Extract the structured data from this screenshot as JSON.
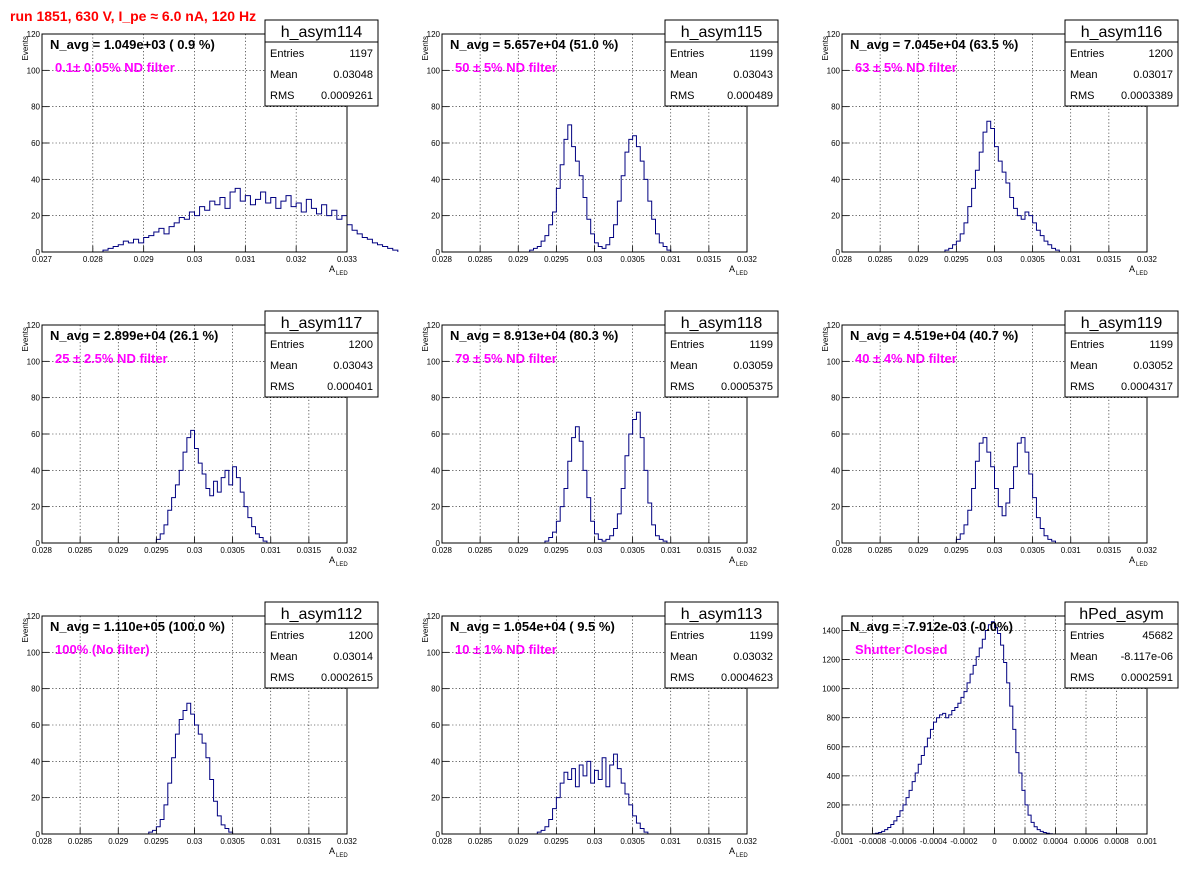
{
  "page": {
    "title": "run 1851,   630 V, I_pe ≈ 6.0 nA, 120 Hz",
    "colors": {
      "title": "#ff0000",
      "annotation": "#ff00ff",
      "histogram": "#000080",
      "frame": "#000000",
      "grid": "#000000"
    }
  },
  "chart_data": [
    {
      "type": "histogram",
      "name": "h_asym114",
      "navg": "N_avg = 1.049e+03 ( 0.9 %)",
      "note": "0.1± 0.05% ND filter",
      "stats": {
        "entries_label": "Entries",
        "entries": "1197",
        "mean_label": "Mean",
        "mean": "0.03048",
        "rms_label": "RMS",
        "rms": "0.0009261"
      },
      "ylabel": "Events",
      "xlabel": "A",
      "xlabel_sub": "LED",
      "xlim": [
        0.027,
        0.033
      ],
      "ylim": [
        0,
        120
      ],
      "xticks": [
        0.027,
        0.028,
        0.029,
        0.03,
        0.031,
        0.032,
        0.033
      ],
      "xticklabels": [
        "0.027",
        "0.028",
        "0.029",
        "0.03",
        "0.031",
        "0.032",
        "0.033"
      ],
      "yticks": [
        0,
        20,
        40,
        60,
        80,
        100,
        120
      ],
      "grid": true,
      "bins": {
        "start": 0.0281,
        "width": 0.0001,
        "values": [
          0,
          1,
          2,
          3,
          4,
          6,
          5,
          7,
          5,
          8,
          9,
          11,
          13,
          10,
          14,
          16,
          19,
          18,
          22,
          20,
          25,
          23,
          28,
          26,
          30,
          24,
          33,
          35,
          28,
          31,
          26,
          29,
          33,
          27,
          30,
          24,
          28,
          31,
          25,
          27,
          22,
          29,
          24,
          21,
          26,
          20,
          23,
          18,
          20,
          15,
          12,
          10,
          8,
          7,
          5,
          4,
          3,
          2,
          1
        ]
      },
      "grid_layout_row": 0,
      "grid_layout_col": 0
    },
    {
      "type": "histogram",
      "name": "h_asym115",
      "navg": "N_avg = 5.657e+04 (51.0 %)",
      "note": "50 ± 5% ND filter",
      "stats": {
        "entries_label": "Entries",
        "entries": "1199",
        "mean_label": "Mean",
        "mean": "0.03043",
        "rms_label": "RMS",
        "rms": "0.000489"
      },
      "ylabel": "Events",
      "xlabel": "A",
      "xlabel_sub": "LED",
      "xlim": [
        0.028,
        0.032
      ],
      "ylim": [
        0,
        120
      ],
      "xticks": [
        0.028,
        0.0285,
        0.029,
        0.0295,
        0.03,
        0.0305,
        0.031,
        0.0315,
        0.032
      ],
      "xticklabels": [
        "0.028",
        "0.0285",
        "0.029",
        "0.0295",
        "0.03",
        "0.0305",
        "0.031",
        "0.0315",
        "0.032"
      ],
      "yticks": [
        0,
        20,
        40,
        60,
        80,
        100,
        120
      ],
      "grid": true,
      "bins": {
        "start": 0.02915,
        "width": 5e-05,
        "values": [
          1,
          2,
          3,
          6,
          9,
          15,
          22,
          35,
          48,
          62,
          70,
          58,
          50,
          42,
          30,
          18,
          10,
          5,
          3,
          2,
          4,
          8,
          15,
          28,
          42,
          55,
          62,
          64,
          58,
          50,
          40,
          28,
          18,
          10,
          5,
          3,
          1
        ]
      },
      "grid_layout_row": 0,
      "grid_layout_col": 1
    },
    {
      "type": "histogram",
      "name": "h_asym116",
      "navg": "N_avg = 7.045e+04 (63.5 %)",
      "note": "63 ± 5% ND filter",
      "stats": {
        "entries_label": "Entries",
        "entries": "1200",
        "mean_label": "Mean",
        "mean": "0.03017",
        "rms_label": "RMS",
        "rms": "0.0003389"
      },
      "ylabel": "Events",
      "xlabel": "A",
      "xlabel_sub": "LED",
      "xlim": [
        0.028,
        0.032
      ],
      "ylim": [
        0,
        120
      ],
      "xticks": [
        0.028,
        0.0285,
        0.029,
        0.0295,
        0.03,
        0.0305,
        0.031,
        0.0315,
        0.032
      ],
      "xticklabels": [
        "0.028",
        "0.0285",
        "0.029",
        "0.0295",
        "0.03",
        "0.0305",
        "0.031",
        "0.0315",
        "0.032"
      ],
      "yticks": [
        0,
        20,
        40,
        60,
        80,
        100,
        120
      ],
      "grid": true,
      "bins": {
        "start": 0.02935,
        "width": 5e-05,
        "values": [
          1,
          2,
          4,
          6,
          10,
          16,
          25,
          35,
          45,
          55,
          66,
          72,
          68,
          58,
          50,
          44,
          38,
          30,
          24,
          20,
          18,
          22,
          20,
          16,
          12,
          9,
          6,
          4,
          2,
          1
        ]
      },
      "grid_layout_row": 0,
      "grid_layout_col": 2
    },
    {
      "type": "histogram",
      "name": "h_asym117",
      "navg": "N_avg = 2.899e+04 (26.1 %)",
      "note": "25 ± 2.5% ND filter",
      "stats": {
        "entries_label": "Entries",
        "entries": "1200",
        "mean_label": "Mean",
        "mean": "0.03043",
        "rms_label": "RMS",
        "rms": "0.000401"
      },
      "ylabel": "Events",
      "xlabel": "A",
      "xlabel_sub": "LED",
      "xlim": [
        0.028,
        0.032
      ],
      "ylim": [
        0,
        120
      ],
      "xticks": [
        0.028,
        0.0285,
        0.029,
        0.0295,
        0.03,
        0.0305,
        0.031,
        0.0315,
        0.032
      ],
      "xticklabels": [
        "0.028",
        "0.0285",
        "0.029",
        "0.0295",
        "0.03",
        "0.0305",
        "0.031",
        "0.0315",
        "0.032"
      ],
      "yticks": [
        0,
        20,
        40,
        60,
        80,
        100,
        120
      ],
      "grid": true,
      "bins": {
        "start": 0.0295,
        "width": 5e-05,
        "values": [
          2,
          5,
          10,
          18,
          25,
          32,
          40,
          50,
          58,
          62,
          52,
          44,
          38,
          30,
          26,
          34,
          28,
          36,
          40,
          32,
          42,
          36,
          28,
          20,
          14,
          9,
          5,
          3,
          1
        ]
      },
      "grid_layout_row": 1,
      "grid_layout_col": 0
    },
    {
      "type": "histogram",
      "name": "h_asym118",
      "navg": "N_avg = 8.913e+04 (80.3 %)",
      "note": "79 ± 5% ND filter",
      "stats": {
        "entries_label": "Entries",
        "entries": "1199",
        "mean_label": "Mean",
        "mean": "0.03059",
        "rms_label": "RMS",
        "rms": "0.0005375"
      },
      "ylabel": "Events",
      "xlabel": "A",
      "xlabel_sub": "LED",
      "xlim": [
        0.028,
        0.032
      ],
      "ylim": [
        0,
        120
      ],
      "xticks": [
        0.028,
        0.0285,
        0.029,
        0.0295,
        0.03,
        0.0305,
        0.031,
        0.0315,
        0.032
      ],
      "xticklabels": [
        "0.028",
        "0.0285",
        "0.029",
        "0.0295",
        "0.03",
        "0.0305",
        "0.031",
        "0.0315",
        "0.032"
      ],
      "yticks": [
        0,
        20,
        40,
        60,
        80,
        100,
        120
      ],
      "grid": true,
      "bins": {
        "start": 0.02935,
        "width": 5e-05,
        "values": [
          1,
          3,
          6,
          12,
          20,
          30,
          45,
          58,
          64,
          56,
          40,
          25,
          12,
          5,
          2,
          1,
          2,
          4,
          8,
          16,
          30,
          48,
          60,
          68,
          72,
          58,
          40,
          22,
          10,
          4,
          2,
          1
        ]
      },
      "grid_layout_row": 1,
      "grid_layout_col": 1
    },
    {
      "type": "histogram",
      "name": "h_asym119",
      "navg": "N_avg = 4.519e+04 (40.7 %)",
      "note": "40 ± 4% ND filter",
      "stats": {
        "entries_label": "Entries",
        "entries": "1199",
        "mean_label": "Mean",
        "mean": "0.03052",
        "rms_label": "RMS",
        "rms": "0.0004317"
      },
      "ylabel": "Events",
      "xlabel": "A",
      "xlabel_sub": "LED",
      "xlim": [
        0.028,
        0.032
      ],
      "ylim": [
        0,
        120
      ],
      "xticks": [
        0.028,
        0.0285,
        0.029,
        0.0295,
        0.03,
        0.0305,
        0.031,
        0.0315,
        0.032
      ],
      "xticklabels": [
        "0.028",
        "0.0285",
        "0.029",
        "0.0295",
        "0.03",
        "0.0305",
        "0.031",
        "0.0315",
        "0.032"
      ],
      "yticks": [
        0,
        20,
        40,
        60,
        80,
        100,
        120
      ],
      "grid": true,
      "bins": {
        "start": 0.0295,
        "width": 5e-05,
        "values": [
          2,
          5,
          10,
          18,
          30,
          45,
          55,
          58,
          50,
          42,
          30,
          20,
          15,
          22,
          30,
          42,
          55,
          58,
          50,
          38,
          25,
          14,
          8,
          4,
          2,
          1
        ]
      },
      "grid_layout_row": 1,
      "grid_layout_col": 2
    },
    {
      "type": "histogram",
      "name": "h_asym112",
      "navg": "N_avg = 1.110e+05 (100.0 %)",
      "note": "100% (No filter)",
      "stats": {
        "entries_label": "Entries",
        "entries": "1200",
        "mean_label": "Mean",
        "mean": "0.03014",
        "rms_label": "RMS",
        "rms": "0.0002615"
      },
      "ylabel": "Events",
      "xlabel": "A",
      "xlabel_sub": "LED",
      "xlim": [
        0.028,
        0.032
      ],
      "ylim": [
        0,
        120
      ],
      "xticks": [
        0.028,
        0.0285,
        0.029,
        0.0295,
        0.03,
        0.0305,
        0.031,
        0.0315,
        0.032
      ],
      "xticklabels": [
        "0.028",
        "0.0285",
        "0.029",
        "0.0295",
        "0.03",
        "0.0305",
        "0.031",
        "0.0315",
        "0.032"
      ],
      "yticks": [
        0,
        20,
        40,
        60,
        80,
        100,
        120
      ],
      "grid": true,
      "bins": {
        "start": 0.0294,
        "width": 5e-05,
        "values": [
          1,
          2,
          4,
          8,
          16,
          28,
          42,
          55,
          63,
          68,
          72,
          66,
          60,
          55,
          50,
          42,
          30,
          18,
          10,
          5,
          3,
          1
        ]
      },
      "grid_layout_row": 2,
      "grid_layout_col": 0
    },
    {
      "type": "histogram",
      "name": "h_asym113",
      "navg": "N_avg = 1.054e+04 ( 9.5 %)",
      "note": "10 ± 1% ND filter",
      "stats": {
        "entries_label": "Entries",
        "entries": "1199",
        "mean_label": "Mean",
        "mean": "0.03032",
        "rms_label": "RMS",
        "rms": "0.0004623"
      },
      "ylabel": "Events",
      "xlabel": "A",
      "xlabel_sub": "LED",
      "xlim": [
        0.028,
        0.032
      ],
      "ylim": [
        0,
        120
      ],
      "xticks": [
        0.028,
        0.0285,
        0.029,
        0.0295,
        0.03,
        0.0305,
        0.031,
        0.0315,
        0.032
      ],
      "xticklabels": [
        "0.028",
        "0.0285",
        "0.029",
        "0.0295",
        "0.03",
        "0.0305",
        "0.031",
        "0.0315",
        "0.032"
      ],
      "yticks": [
        0,
        20,
        40,
        60,
        80,
        100,
        120
      ],
      "grid": true,
      "bins": {
        "start": 0.02925,
        "width": 5e-05,
        "values": [
          1,
          2,
          4,
          8,
          14,
          20,
          28,
          34,
          30,
          36,
          26,
          38,
          32,
          40,
          28,
          35,
          30,
          42,
          26,
          38,
          44,
          36,
          28,
          22,
          16,
          10,
          6,
          3,
          1
        ]
      },
      "grid_layout_row": 2,
      "grid_layout_col": 1
    },
    {
      "type": "histogram",
      "name": "hPed_asym",
      "navg": "N_avg = -7.912e-03 (-0.0%)",
      "note": "Shutter Closed",
      "stats": {
        "entries_label": "Entries",
        "entries": "45682",
        "mean_label": "Mean",
        "mean": "-8.117e-06",
        "rms_label": "RMS",
        "rms": "0.0002591"
      },
      "ylabel": "",
      "xlabel": "",
      "xlabel_sub": "",
      "xlim": [
        -0.001,
        0.001
      ],
      "ylim": [
        0,
        1500
      ],
      "xticks": [
        -0.001,
        -0.0008,
        -0.0006,
        -0.0004,
        -0.0002,
        0,
        0.0002,
        0.0004,
        0.0006,
        0.0008,
        0.001
      ],
      "xticklabels": [
        "-0.001",
        "-0.0008",
        "-0.0006",
        "-0.0004",
        "-0.0002",
        "0",
        "0.0002",
        "0.0004",
        "0.0006",
        "0.0008",
        "0.001"
      ],
      "yticks": [
        0,
        200,
        400,
        600,
        800,
        1000,
        1200,
        1400
      ],
      "grid": true,
      "bins": {
        "start": -0.0008,
        "width": 2e-05,
        "values": [
          2,
          5,
          10,
          18,
          30,
          45,
          65,
          90,
          120,
          160,
          200,
          250,
          300,
          360,
          420,
          480,
          540,
          600,
          660,
          720,
          770,
          800,
          820,
          830,
          800,
          820,
          850,
          870,
          900,
          940,
          980,
          1040,
          1100,
          1160,
          1220,
          1280,
          1340,
          1400,
          1440,
          1460,
          1420,
          1380,
          1300,
          1180,
          1040,
          880,
          720,
          560,
          420,
          300,
          200,
          130,
          80,
          50,
          30,
          18,
          10,
          5,
          2
        ]
      },
      "grid_layout_row": 2,
      "grid_layout_col": 2
    }
  ]
}
